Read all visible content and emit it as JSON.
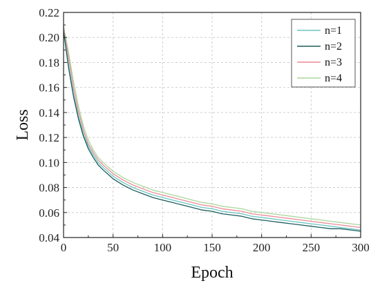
{
  "chart_data": {
    "type": "line",
    "title": "",
    "xlabel": "Epoch",
    "ylabel": "Loss",
    "xlim": [
      0,
      300
    ],
    "ylim": [
      0.04,
      0.22
    ],
    "x_ticks": [
      0,
      50,
      100,
      150,
      200,
      250,
      300
    ],
    "y_ticks": [
      0.04,
      0.06,
      0.08,
      0.1,
      0.12,
      0.14,
      0.16,
      0.18,
      0.2,
      0.22
    ],
    "y_tick_labels": [
      "0.04",
      "0.06",
      "0.08",
      "0.10",
      "0.12",
      "0.14",
      "0.16",
      "0.18",
      "0.20",
      "0.22"
    ],
    "grid": true,
    "legend_position": "top-right",
    "x": [
      0,
      5,
      10,
      15,
      20,
      25,
      30,
      35,
      40,
      50,
      60,
      70,
      80,
      90,
      100,
      110,
      120,
      130,
      140,
      150,
      160,
      170,
      180,
      190,
      200,
      210,
      220,
      230,
      240,
      250,
      260,
      270,
      280,
      290,
      300
    ],
    "series": [
      {
        "name": "n=1",
        "color": "#6cc4c4",
        "values": [
          0.206,
          0.178,
          0.155,
          0.137,
          0.123,
          0.113,
          0.106,
          0.1,
          0.096,
          0.089,
          0.084,
          0.08,
          0.077,
          0.074,
          0.072,
          0.07,
          0.068,
          0.066,
          0.064,
          0.063,
          0.061,
          0.06,
          0.059,
          0.057,
          0.056,
          0.055,
          0.054,
          0.053,
          0.052,
          0.051,
          0.05,
          0.049,
          0.048,
          0.047,
          0.046
        ]
      },
      {
        "name": "n=2",
        "color": "#1c5c5c",
        "values": [
          0.205,
          0.176,
          0.153,
          0.135,
          0.121,
          0.111,
          0.104,
          0.098,
          0.094,
          0.087,
          0.082,
          0.078,
          0.075,
          0.072,
          0.07,
          0.068,
          0.066,
          0.064,
          0.062,
          0.061,
          0.059,
          0.058,
          0.057,
          0.055,
          0.054,
          0.053,
          0.052,
          0.051,
          0.05,
          0.049,
          0.048,
          0.047,
          0.047,
          0.046,
          0.045
        ]
      },
      {
        "name": "n=3",
        "color": "#e98b94",
        "values": [
          0.208,
          0.184,
          0.16,
          0.141,
          0.126,
          0.115,
          0.108,
          0.102,
          0.098,
          0.091,
          0.086,
          0.082,
          0.079,
          0.076,
          0.074,
          0.072,
          0.07,
          0.068,
          0.066,
          0.065,
          0.063,
          0.062,
          0.061,
          0.059,
          0.058,
          0.057,
          0.056,
          0.055,
          0.054,
          0.053,
          0.052,
          0.051,
          0.05,
          0.049,
          0.048
        ]
      },
      {
        "name": "n=4",
        "color": "#a9d69a",
        "values": [
          0.209,
          0.188,
          0.165,
          0.145,
          0.129,
          0.118,
          0.11,
          0.104,
          0.1,
          0.093,
          0.088,
          0.084,
          0.081,
          0.078,
          0.076,
          0.074,
          0.072,
          0.07,
          0.068,
          0.067,
          0.065,
          0.064,
          0.063,
          0.061,
          0.06,
          0.059,
          0.058,
          0.057,
          0.056,
          0.055,
          0.054,
          0.053,
          0.052,
          0.051,
          0.05
        ]
      }
    ]
  }
}
